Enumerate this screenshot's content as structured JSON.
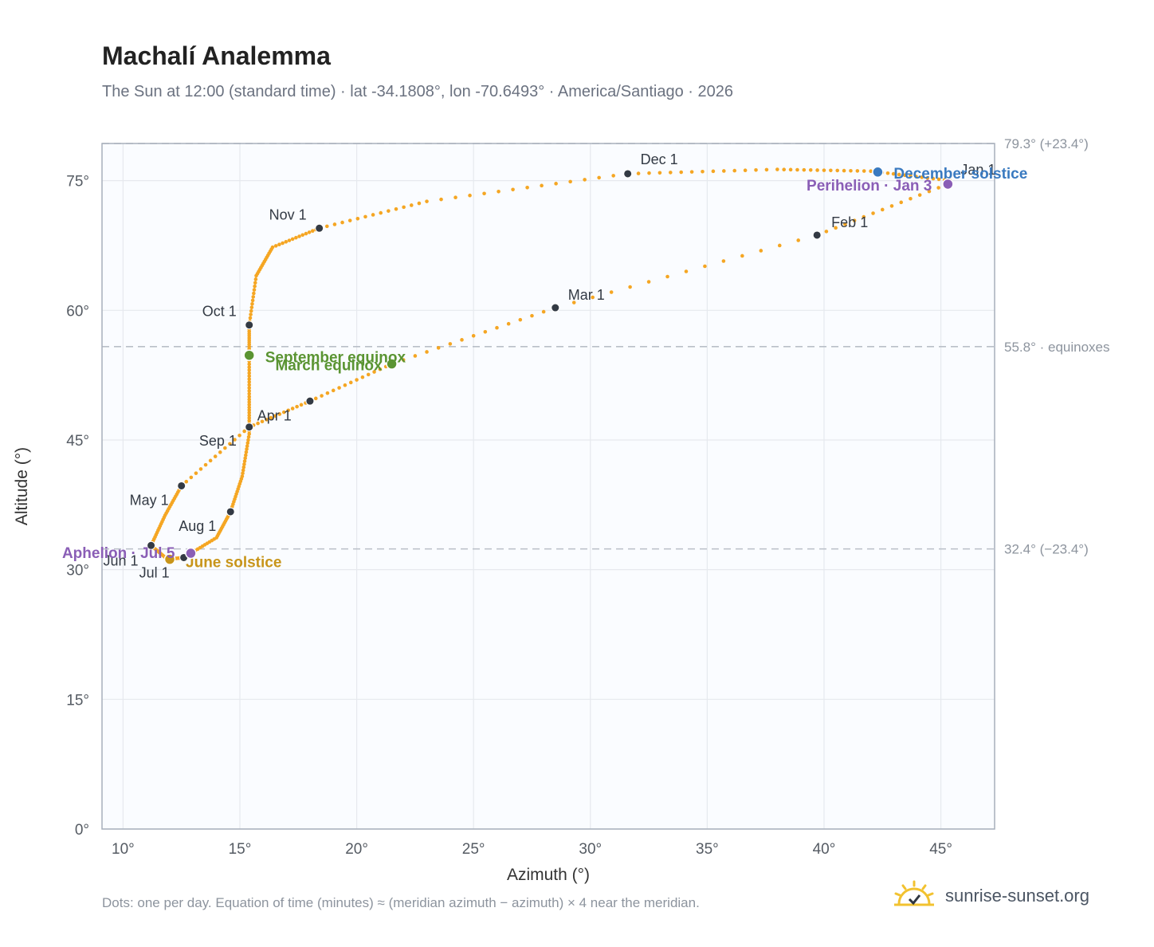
{
  "title": "Machalí Analemma",
  "subtitle": "The Sun at 12:00 (standard time) · lat -34.1808°, lon -70.6493° · America/Santiago · 2026",
  "footnote": "Dots: one per day. Equation of time (minutes) ≈ (meridian azimuth − azimuth) × 4 near the meridian.",
  "brand": {
    "name": "sunrise-sunset.org",
    "icon": "sun-logo-icon"
  },
  "colors": {
    "path": "#f5a623",
    "month": "#333a44",
    "equinox": "#5a9432",
    "december": "#3a7ac0",
    "june": "#c8951a",
    "apsis": "#8a5eb6",
    "refline": "#b9bfc8"
  },
  "chart_data": {
    "type": "scatter",
    "xlabel": "Azimuth (°)",
    "ylabel": "Altitude (°)",
    "xlim": [
      9.1,
      47.3
    ],
    "ylim": [
      0,
      79.3
    ],
    "xticks": [
      10,
      15,
      20,
      25,
      30,
      35,
      40,
      45
    ],
    "yticks": [
      0,
      15,
      30,
      45,
      60,
      75
    ],
    "xtick_labels": [
      "10°",
      "15°",
      "20°",
      "25°",
      "30°",
      "35°",
      "40°",
      "45°"
    ],
    "ytick_labels": [
      "0°",
      "15°",
      "30°",
      "45°",
      "60°",
      "75°"
    ],
    "grid": true,
    "reference_lines": [
      {
        "y": 79.3,
        "label": "79.3° (+23.4°)"
      },
      {
        "y": 55.8,
        "label": "55.8° · equinoxes"
      },
      {
        "y": 32.4,
        "label": "32.4° (−23.4°)"
      }
    ],
    "path_points": [
      [
        45.3,
        74.6
      ],
      [
        39.7,
        68.7
      ],
      [
        28.5,
        60.3
      ],
      [
        21.5,
        53.8
      ],
      [
        18.0,
        49.5
      ],
      [
        15.4,
        46.5
      ],
      [
        12.5,
        39.7
      ],
      [
        11.8,
        36.3
      ],
      [
        11.2,
        32.8
      ],
      [
        11.9,
        31.2
      ],
      [
        12.6,
        31.4
      ],
      [
        14.0,
        33.7
      ],
      [
        14.6,
        36.7
      ],
      [
        15.1,
        40.8
      ],
      [
        15.4,
        45.7
      ],
      [
        15.4,
        50.0
      ],
      [
        15.4,
        54.8
      ],
      [
        15.4,
        58.3
      ],
      [
        15.7,
        64.0
      ],
      [
        16.4,
        67.3
      ],
      [
        18.4,
        69.5
      ],
      [
        23.0,
        72.6
      ],
      [
        31.6,
        75.8
      ],
      [
        38.0,
        76.3
      ],
      [
        42.0,
        76.1
      ],
      [
        45.4,
        75.0
      ],
      [
        45.3,
        74.6
      ]
    ],
    "months": [
      {
        "label": "Jan 1",
        "x": 45.3,
        "y": 74.6
      },
      {
        "label": "Feb 1",
        "x": 39.7,
        "y": 68.7
      },
      {
        "label": "Mar 1",
        "x": 28.5,
        "y": 60.3
      },
      {
        "label": "Apr 1",
        "x": 15.4,
        "y": 46.5
      },
      {
        "label": "May 1",
        "x": 12.5,
        "y": 39.7
      },
      {
        "label": "Jun 1",
        "x": 11.2,
        "y": 32.8
      },
      {
        "label": "Jul 1",
        "x": 12.6,
        "y": 31.4
      },
      {
        "label": "Aug 1",
        "x": 14.6,
        "y": 36.7
      },
      {
        "label": "Sep 1",
        "x": 18.0,
        "y": 49.5
      },
      {
        "label": "Oct 1",
        "x": 15.4,
        "y": 58.3
      },
      {
        "label": "Nov 1",
        "x": 18.4,
        "y": 69.5
      },
      {
        "label": "Dec 1",
        "x": 31.6,
        "y": 75.8
      }
    ],
    "events": [
      {
        "label": "March equinox",
        "x": 21.5,
        "y": 53.8,
        "color": "#5a9432"
      },
      {
        "label": "September equinox",
        "x": 15.4,
        "y": 54.8,
        "color": "#5a9432"
      },
      {
        "label": "December solstice",
        "x": 42.3,
        "y": 76.0,
        "color": "#3a7ac0"
      },
      {
        "label": "June solstice",
        "x": 12.0,
        "y": 31.2,
        "color": "#c8951a"
      },
      {
        "label": "Perihelion · Jan 3",
        "x": 45.3,
        "y": 74.6,
        "color": "#8a5eb6"
      },
      {
        "label": "Aphelion · Jul 5",
        "x": 12.9,
        "y": 31.9,
        "color": "#8a5eb6"
      }
    ]
  }
}
